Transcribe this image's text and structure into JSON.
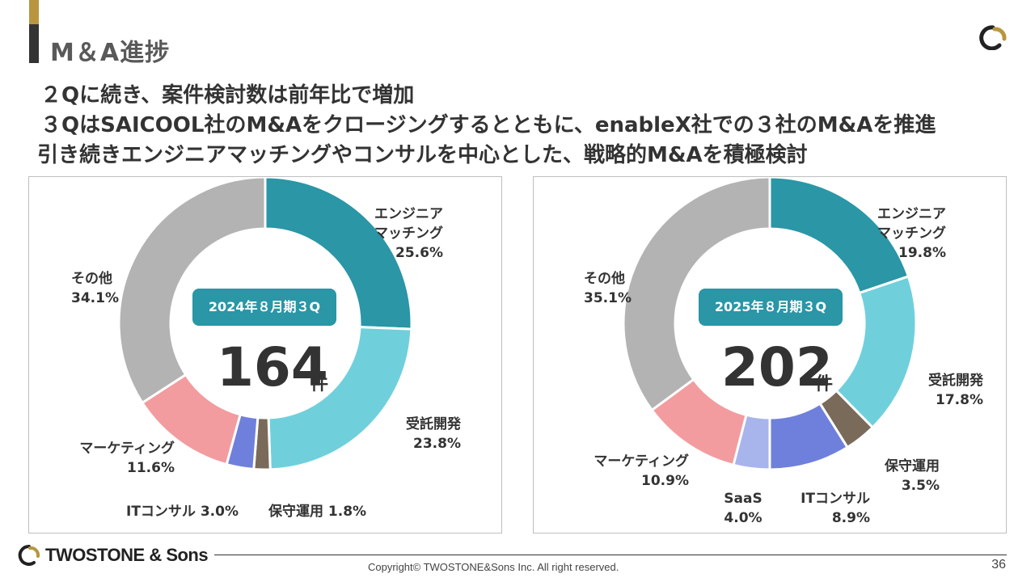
{
  "page": {
    "title": "M＆A進捗",
    "summary": [
      "２Qに続き、案件検討数は前年比で増加",
      "３QはSAICOOL社のM&Aをクロージングするとともに、enableX社での３社のM&Aを推進",
      "引き続きエンジニアマッチングやコンサルを中心とした、戦略的M&Aを積極検討"
    ]
  },
  "colors": {
    "accent_gold": "#b8963f",
    "title_bar_dark": "#333333",
    "badge_teal": "#2a96a6",
    "engineer_matching": "#2a96a6",
    "contract_dev": "#6fd0dc",
    "maintenance": "#7a6a5a",
    "it_consulting": "#6f80dc",
    "saas": "#a8b4ec",
    "marketing": "#f29c9f",
    "other": "#b3b3b3"
  },
  "chart_data": [
    {
      "type": "pie",
      "badge": "2024年８月期３Q",
      "total": "164",
      "unit": "件",
      "slices": [
        {
          "label": "エンジニア\nマッチング",
          "value": 25.6,
          "pct": "25.6%",
          "color_key": "engineer_matching"
        },
        {
          "label": "受託開発",
          "value": 23.8,
          "pct": "23.8%",
          "color_key": "contract_dev"
        },
        {
          "label": "保守運用",
          "value": 1.8,
          "pct": "1.8%",
          "color_key": "maintenance"
        },
        {
          "label": "ITコンサル",
          "value": 3.0,
          "pct": "3.0%",
          "color_key": "it_consulting"
        },
        {
          "label": "マーケティング",
          "value": 11.6,
          "pct": "11.6%",
          "color_key": "marketing"
        },
        {
          "label": "その他",
          "value": 34.1,
          "pct": "34.1%",
          "color_key": "other"
        }
      ]
    },
    {
      "type": "pie",
      "badge": "2025年８月期３Q",
      "total": "202",
      "unit": "件",
      "slices": [
        {
          "label": "エンジニア\nマッチング",
          "value": 19.8,
          "pct": "19.8%",
          "color_key": "engineer_matching"
        },
        {
          "label": "受託開発",
          "value": 17.8,
          "pct": "17.8%",
          "color_key": "contract_dev"
        },
        {
          "label": "保守運用",
          "value": 3.5,
          "pct": "3.5%",
          "color_key": "maintenance"
        },
        {
          "label": "ITコンサル",
          "value": 8.9,
          "pct": "8.9%",
          "color_key": "it_consulting"
        },
        {
          "label": "SaaS",
          "value": 4.0,
          "pct": "4.0%",
          "color_key": "saas"
        },
        {
          "label": "マーケティング",
          "value": 10.9,
          "pct": "10.9%",
          "color_key": "marketing"
        },
        {
          "label": "その他",
          "value": 35.1,
          "pct": "35.1%",
          "color_key": "other"
        }
      ]
    }
  ],
  "footer": {
    "logo_text": "TWOSTONE & Sons",
    "copyright": "Copyright© TWOSTONE&Sons Inc. All right reserved.",
    "page_number": "36"
  }
}
